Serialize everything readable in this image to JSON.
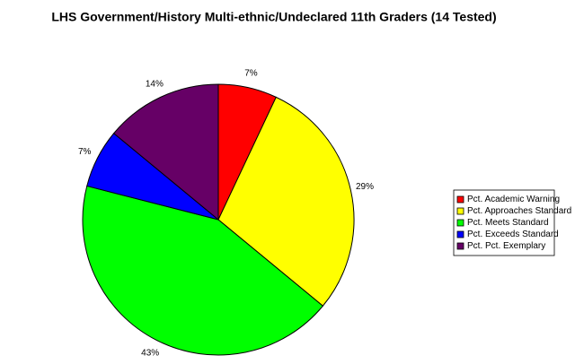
{
  "chart_data": {
    "type": "pie",
    "title": "LHS Government/History Multi-ethnic/Undeclared 11th Graders (14 Tested)",
    "categories": [
      "Pct. Academic Warning",
      "Pct. Approaches Standard",
      "Pct. Meets Standard",
      "Pct. Exceeds Standard",
      "Pct. Pct. Exemplary"
    ],
    "values": [
      7,
      29,
      43,
      7,
      14
    ],
    "value_labels": [
      "7%",
      "29%",
      "43%",
      "7%",
      "14%"
    ],
    "colors": [
      "#ff0000",
      "#ffff00",
      "#00ff00",
      "#0000ff",
      "#660066"
    ],
    "legend": "right"
  }
}
